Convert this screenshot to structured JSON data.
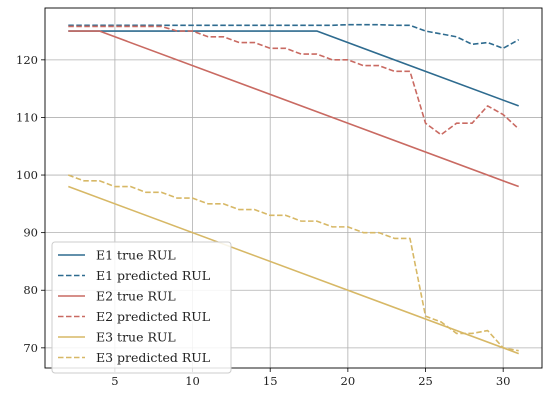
{
  "chart_data": {
    "type": "line",
    "title": "",
    "xlabel": "",
    "ylabel": "",
    "xlim": [
      0.5,
      32.5
    ],
    "ylim": [
      66.5,
      129
    ],
    "grid": true,
    "legend_position": "bottom-left",
    "xticks": [
      5,
      10,
      15,
      20,
      25,
      30
    ],
    "yticks": [
      70,
      80,
      90,
      100,
      110,
      120
    ],
    "series": [
      {
        "name": "E1 true RUL",
        "color": "#2e6b8f",
        "dash": "solid",
        "x": [
          2,
          18,
          31
        ],
        "y": [
          125,
          125,
          112
        ]
      },
      {
        "name": "E1 predicted RUL",
        "color": "#2e6b8f",
        "dash": "dashed",
        "x": [
          2,
          3,
          4,
          5,
          6,
          7,
          8,
          9,
          10,
          11,
          12,
          13,
          14,
          15,
          16,
          17,
          18,
          19,
          20,
          21,
          22,
          23,
          24,
          25,
          26,
          27,
          28,
          29,
          30,
          31
        ],
        "y": [
          126,
          126,
          126,
          126,
          126,
          126,
          126,
          126,
          126,
          126,
          126,
          126,
          126,
          126,
          126,
          126,
          126,
          126,
          126.1,
          126.1,
          126.1,
          126,
          126,
          125,
          124.5,
          124,
          122.7,
          123,
          122,
          123.5
        ]
      },
      {
        "name": "E2 true RUL",
        "color": "#c96a62",
        "dash": "solid",
        "x": [
          2,
          4,
          31
        ],
        "y": [
          125,
          125,
          98
        ]
      },
      {
        "name": "E2 predicted RUL",
        "color": "#c96a62",
        "dash": "dashed",
        "x": [
          2,
          3,
          4,
          5,
          6,
          7,
          8,
          9,
          10,
          11,
          12,
          13,
          14,
          15,
          16,
          17,
          18,
          19,
          20,
          21,
          22,
          23,
          24,
          25,
          26,
          27,
          28,
          29,
          30,
          31
        ],
        "y": [
          125.8,
          125.8,
          125.8,
          125.8,
          125.8,
          125.8,
          125.8,
          125,
          125,
          124,
          124,
          123,
          123,
          122,
          122,
          121,
          121,
          120,
          120,
          119,
          119,
          118,
          118,
          109,
          107,
          109,
          109,
          112,
          110.5,
          108
        ]
      },
      {
        "name": "E3 true RUL",
        "color": "#d7b866",
        "dash": "solid",
        "x": [
          2,
          31
        ],
        "y": [
          98,
          69
        ]
      },
      {
        "name": "E3 predicted RUL",
        "color": "#d7b866",
        "dash": "dashed",
        "x": [
          2,
          3,
          4,
          5,
          6,
          7,
          8,
          9,
          10,
          11,
          12,
          13,
          14,
          15,
          16,
          17,
          18,
          19,
          20,
          21,
          22,
          23,
          24,
          25,
          26,
          27,
          28,
          29,
          30,
          31
        ],
        "y": [
          100,
          99,
          99,
          98,
          98,
          97,
          97,
          96,
          96,
          95,
          95,
          94,
          94,
          93,
          93,
          92,
          92,
          91,
          91,
          90,
          90,
          89,
          89,
          75.5,
          74.5,
          72.5,
          72.5,
          73,
          70,
          69.5
        ]
      }
    ]
  }
}
